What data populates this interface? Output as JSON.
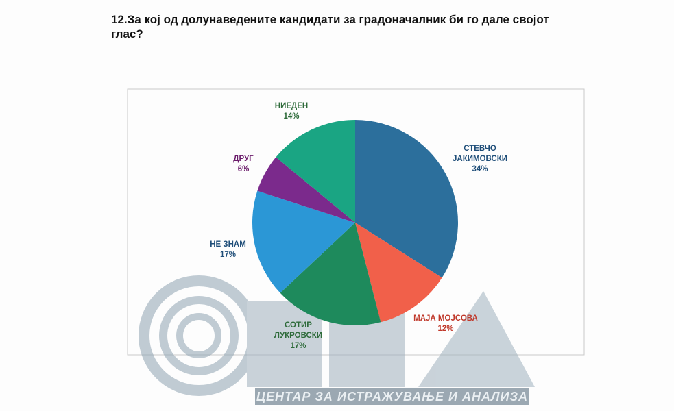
{
  "chart_data": {
    "type": "pie",
    "title": "12.За кој од долунаведените кандидати за градоначалник би го дале својот глас?",
    "categories": [
      "СТЕВЧО ЈАКИМОВСКИ",
      "МАЈА МОЈСОВА",
      "СОТИР ЛУКРОВСКИ",
      "НЕ ЗНАМ",
      "ДРУГ",
      "НИЕДЕН"
    ],
    "values": [
      34,
      12,
      17,
      17,
      6,
      14
    ],
    "value_labels": [
      "34%",
      "12%",
      "17%",
      "17%",
      "6%",
      "14%"
    ],
    "colors": [
      "#2c6f9c",
      "#f1604a",
      "#1e8a5c",
      "#2b97d6",
      "#7b2a8c",
      "#1aa583"
    ],
    "label_colors": [
      "#1f4e79",
      "#c0392b",
      "#2e6b3a",
      "#1f4e79",
      "#6a1b6a",
      "#2e6b3a"
    ],
    "watermark": "ЦЕНТАР ЗА ИСТРАЖУВАЊЕ И АНАЛИЗА"
  }
}
